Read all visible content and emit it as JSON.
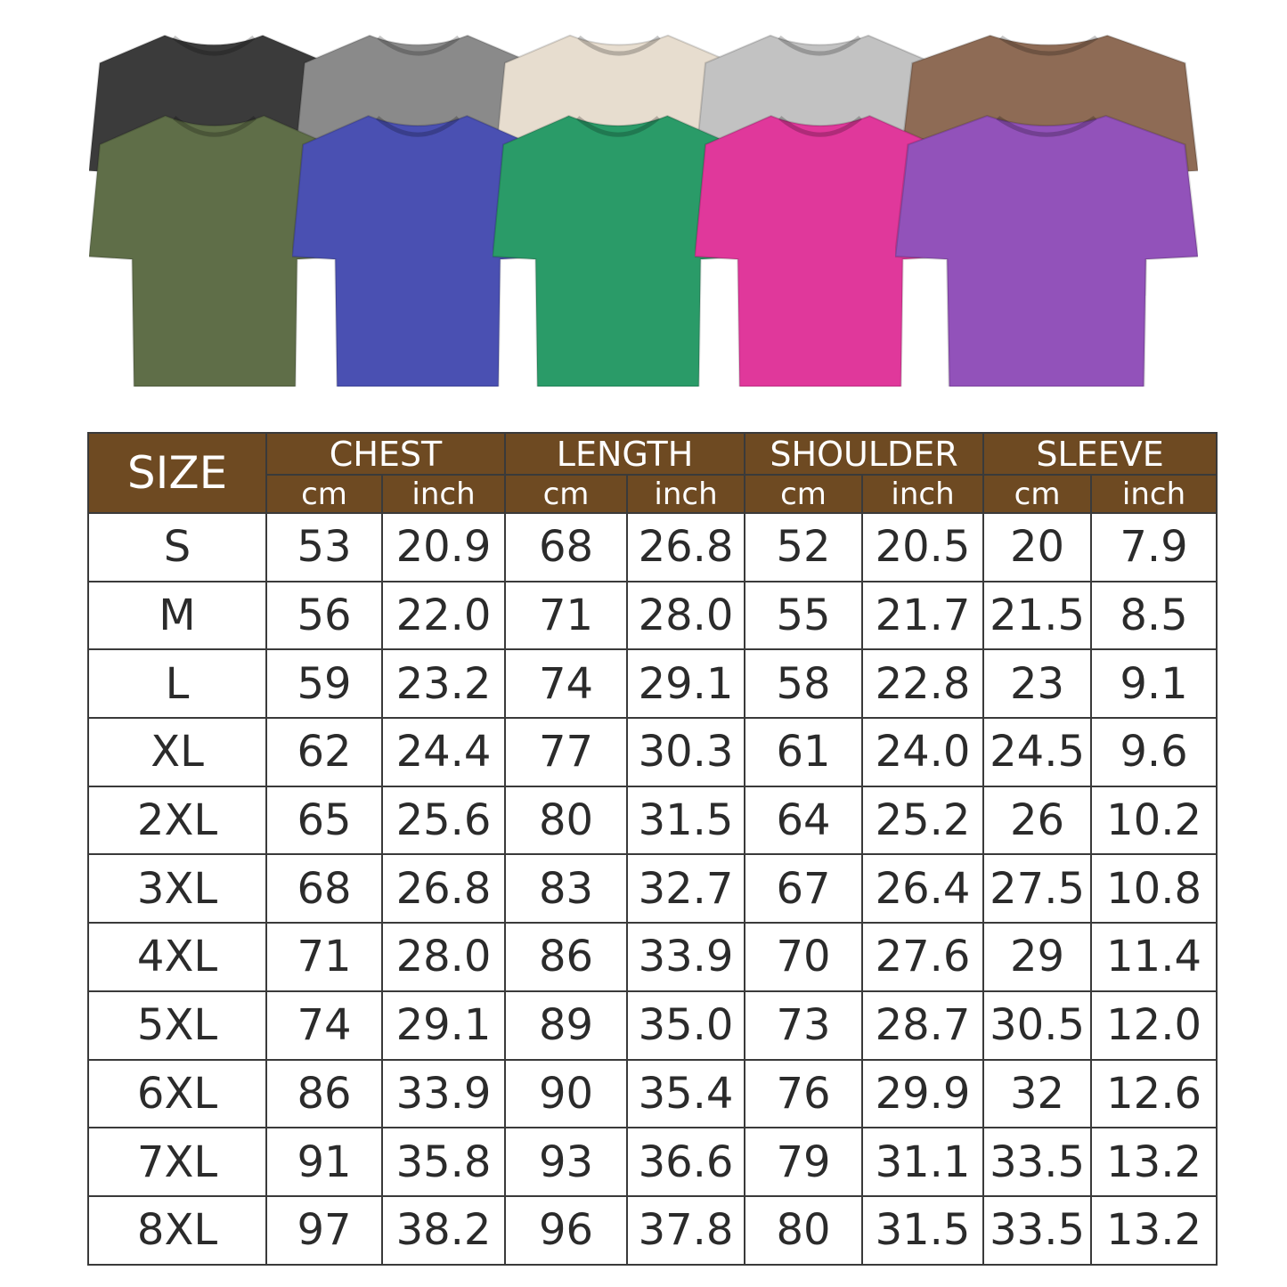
{
  "shirts": {
    "back_row": [
      {
        "color": "#3b3b3b"
      },
      {
        "color": "#8a8a8a"
      },
      {
        "color": "#e7ddcf"
      },
      {
        "color": "#c2c2c2"
      },
      {
        "color": "#8e6b55"
      }
    ],
    "front_row": [
      {
        "color": "#5f6e48"
      },
      {
        "color": "#4a50b2"
      },
      {
        "color": "#2a9b68"
      },
      {
        "color": "#e0389b"
      },
      {
        "color": "#9252ba"
      }
    ]
  },
  "size_chart": {
    "header_color": "#6e4a22",
    "size_label": "SIZE",
    "groups": [
      "CHEST",
      "LENGTH",
      "SHOULDER",
      "SLEEVE"
    ],
    "units": [
      "cm",
      "inch"
    ],
    "rows": [
      [
        "S",
        "53",
        "20.9",
        "68",
        "26.8",
        "52",
        "20.5",
        "20",
        "7.9"
      ],
      [
        "M",
        "56",
        "22.0",
        "71",
        "28.0",
        "55",
        "21.7",
        "21.5",
        "8.5"
      ],
      [
        "L",
        "59",
        "23.2",
        "74",
        "29.1",
        "58",
        "22.8",
        "23",
        "9.1"
      ],
      [
        "XL",
        "62",
        "24.4",
        "77",
        "30.3",
        "61",
        "24.0",
        "24.5",
        "9.6"
      ],
      [
        "2XL",
        "65",
        "25.6",
        "80",
        "31.5",
        "64",
        "25.2",
        "26",
        "10.2"
      ],
      [
        "3XL",
        "68",
        "26.8",
        "83",
        "32.7",
        "67",
        "26.4",
        "27.5",
        "10.8"
      ],
      [
        "4XL",
        "71",
        "28.0",
        "86",
        "33.9",
        "70",
        "27.6",
        "29",
        "11.4"
      ],
      [
        "5XL",
        "74",
        "29.1",
        "89",
        "35.0",
        "73",
        "28.7",
        "30.5",
        "12.0"
      ],
      [
        "6XL",
        "86",
        "33.9",
        "90",
        "35.4",
        "76",
        "29.9",
        "32",
        "12.6"
      ],
      [
        "7XL",
        "91",
        "35.8",
        "93",
        "36.6",
        "79",
        "31.1",
        "33.5",
        "13.2"
      ],
      [
        "8XL",
        "97",
        "38.2",
        "96",
        "37.8",
        "80",
        "31.5",
        "33.5",
        "13.2"
      ]
    ]
  }
}
